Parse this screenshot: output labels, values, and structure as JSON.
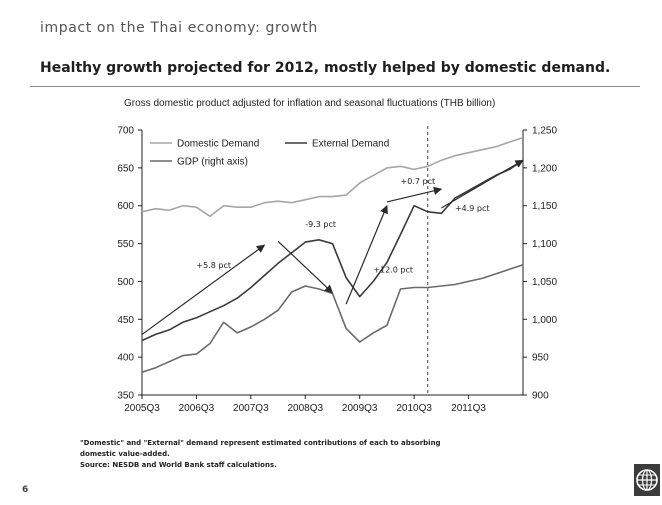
{
  "slide": {
    "kicker": "impact on the Thai economy: growth",
    "headline": "Healthy growth projected for 2012, mostly helped by domestic demand.",
    "page_number": "6"
  },
  "footnotes": {
    "line1": "\"Domestic\" and \"External\" demand represent estimated contributions of each to absorbing",
    "line2": "domestic value-added.",
    "line3": "Source: NESDB and World Bank staff calculations."
  },
  "colors": {
    "domestic": "#a6a6a6",
    "external": "#3a3a3a",
    "gdp": "#6a6a6a",
    "axis": "#222222",
    "arrow": "#2a2a2a",
    "projection_line": "#444444"
  },
  "icons": [
    "world-bank-globe-icon"
  ],
  "chart_data": {
    "type": "line",
    "subtitle": "Gross domestic product adjusted for inflation and seasonal fluctuations (THB billion)",
    "x_labels": [
      "2005Q3",
      "2005Q4",
      "2006Q1",
      "2006Q2",
      "2006Q3",
      "2006Q4",
      "2007Q1",
      "2007Q2",
      "2007Q3",
      "2007Q4",
      "2008Q1",
      "2008Q2",
      "2008Q3",
      "2008Q4",
      "2009Q1",
      "2009Q2",
      "2009Q3",
      "2009Q4",
      "2010Q1",
      "2010Q2",
      "2010Q3",
      "2010Q4",
      "2011Q1",
      "2011Q2",
      "2011Q3",
      "2011Q4",
      "2012Q1",
      "2012Q2",
      "2012Q3"
    ],
    "x_ticks_shown": [
      "2005Q3",
      "2006Q3",
      "2007Q3",
      "2008Q3",
      "2009Q3",
      "2010Q3",
      "2011Q3"
    ],
    "projection_start": "2010Q4",
    "y_left": {
      "min": 350,
      "max": 700,
      "ticks": [
        350,
        400,
        450,
        500,
        550,
        600,
        650,
        700
      ]
    },
    "y_right": {
      "min": 900,
      "max": 1250,
      "ticks": [
        "900",
        "950",
        "1,000",
        "1,050",
        "1,100",
        "1,150",
        "1,200",
        "1,250"
      ]
    },
    "series": [
      {
        "name": "Domestic Demand",
        "axis": "left",
        "values": [
          592,
          596,
          594,
          600,
          598,
          586,
          600,
          598,
          598,
          604,
          606,
          604,
          608,
          612,
          612,
          614,
          630,
          640,
          650,
          652,
          648,
          652,
          660,
          666,
          670,
          674,
          678,
          684,
          690
        ]
      },
      {
        "name": "External Demand",
        "axis": "left",
        "values": [
          422,
          430,
          436,
          446,
          452,
          460,
          468,
          478,
          492,
          508,
          524,
          538,
          552,
          555,
          550,
          505,
          480,
          500,
          525,
          562,
          600,
          592,
          590,
          610,
          620,
          630,
          640,
          648,
          660
        ]
      },
      {
        "name": "GDP (right axis)",
        "axis": "right",
        "values": [
          930,
          936,
          944,
          952,
          954,
          968,
          996,
          982,
          990,
          1000,
          1012,
          1036,
          1044,
          1040,
          1034,
          988,
          970,
          982,
          992,
          1040,
          1042,
          1042,
          1044,
          1046,
          1050,
          1054,
          1060,
          1066,
          1072
        ]
      }
    ],
    "annotations": [
      {
        "text": "+5.8 pct",
        "from_x": "2005Q3",
        "from_y": 430,
        "to_x": "2007Q4",
        "to_y": 548,
        "label_x": "2006Q3",
        "label_y": 518
      },
      {
        "text": "-9.3 pct",
        "from_x": "2008Q1",
        "from_y": 553,
        "to_x": "2009Q1",
        "to_y": 485,
        "label_x": "2008Q3",
        "label_y": 572
      },
      {
        "text": "+12.0 pct",
        "from_x": "2009Q2",
        "from_y": 470,
        "to_x": "2010Q1",
        "to_y": 600,
        "label_x": "2009Q4",
        "label_y": 512
      },
      {
        "text": "+0.7 pct",
        "from_x": "2010Q1",
        "from_y": 605,
        "to_x": "2011Q1",
        "to_y": 622,
        "label_x": "2010Q2",
        "label_y": 629
      },
      {
        "text": "+4.9 pct",
        "from_x": "2011Q1",
        "from_y": 597,
        "to_x": "2012Q3",
        "to_y": 660,
        "label_x": "2011Q2",
        "label_y": 593
      }
    ]
  }
}
